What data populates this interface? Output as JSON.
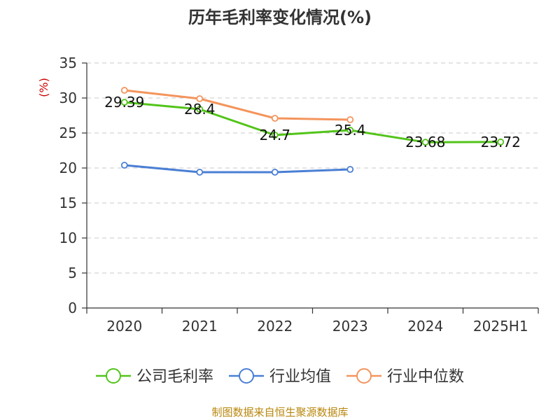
{
  "chart_data": {
    "type": "line",
    "title": "历年毛利率变化情况(%)",
    "ylabel": "(%)",
    "xlabel": "",
    "categories": [
      "2020",
      "2021",
      "2022",
      "2023",
      "2024",
      "2025H1"
    ],
    "yticks": [
      0,
      5,
      10,
      15,
      20,
      25,
      30,
      35
    ],
    "ylim": [
      0,
      35
    ],
    "grid": true,
    "legend_position": "bottom",
    "series": [
      {
        "name": "公司毛利率",
        "color": "#52c41a",
        "values": [
          29.39,
          28.4,
          24.7,
          25.4,
          23.68,
          23.72
        ],
        "labels": [
          "29.39",
          "28.4",
          "24.7",
          "25.4",
          "23.68",
          "23.72"
        ]
      },
      {
        "name": "行业均值",
        "color": "#4a7fd4",
        "values": [
          20.4,
          19.4,
          19.4,
          19.8,
          null,
          null
        ],
        "labels": []
      },
      {
        "name": "行业中位数",
        "color": "#f4945c",
        "values": [
          31.1,
          29.9,
          27.1,
          26.9,
          null,
          null
        ],
        "labels": []
      }
    ]
  },
  "source": "制图数据来自恒生聚源数据库"
}
